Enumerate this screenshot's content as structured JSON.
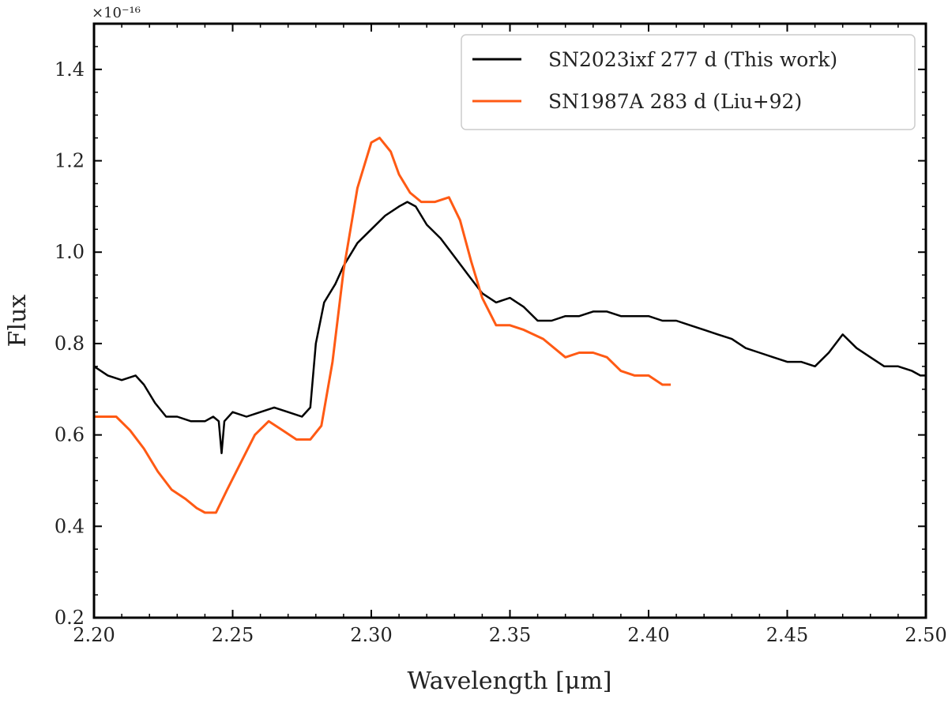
{
  "chart_data": {
    "type": "line",
    "title": "",
    "xlabel": "Wavelength [μm]",
    "ylabel": "Flux",
    "y_multiplier_label": "×10⁻¹⁶",
    "xlim": [
      2.2,
      2.5
    ],
    "ylim": [
      0.2,
      1.5
    ],
    "grid": false,
    "x_ticks": [
      2.2,
      2.25,
      2.3,
      2.35,
      2.4,
      2.45,
      2.5
    ],
    "x_tick_labels": [
      "2.20",
      "2.25",
      "2.30",
      "2.35",
      "2.40",
      "2.45",
      "2.50"
    ],
    "y_ticks": [
      0.2,
      0.4,
      0.6,
      0.8,
      1.0,
      1.2,
      1.4
    ],
    "y_tick_labels": [
      "0.2",
      "0.4",
      "0.6",
      "0.8",
      "1.0",
      "1.2",
      "1.4"
    ],
    "legend_position": "top-right",
    "series": [
      {
        "name": "SN2023ixf 277 d (This work)",
        "color": "#000000",
        "x": [
          2.2,
          2.205,
          2.21,
          2.215,
          2.218,
          2.222,
          2.226,
          2.23,
          2.235,
          2.24,
          2.243,
          2.245,
          2.246,
          2.247,
          2.25,
          2.255,
          2.26,
          2.265,
          2.27,
          2.275,
          2.278,
          2.28,
          2.283,
          2.287,
          2.29,
          2.295,
          2.3,
          2.305,
          2.31,
          2.313,
          2.316,
          2.32,
          2.325,
          2.33,
          2.335,
          2.34,
          2.345,
          2.35,
          2.355,
          2.36,
          2.365,
          2.37,
          2.375,
          2.38,
          2.385,
          2.39,
          2.395,
          2.4,
          2.405,
          2.41,
          2.415,
          2.42,
          2.425,
          2.43,
          2.435,
          2.44,
          2.445,
          2.45,
          2.455,
          2.46,
          2.465,
          2.47,
          2.475,
          2.48,
          2.485,
          2.49,
          2.495,
          2.498,
          2.5
        ],
        "y": [
          0.75,
          0.73,
          0.72,
          0.73,
          0.71,
          0.67,
          0.64,
          0.64,
          0.63,
          0.63,
          0.64,
          0.63,
          0.56,
          0.63,
          0.65,
          0.64,
          0.65,
          0.66,
          0.65,
          0.64,
          0.66,
          0.8,
          0.89,
          0.93,
          0.97,
          1.02,
          1.05,
          1.08,
          1.1,
          1.11,
          1.1,
          1.06,
          1.03,
          0.99,
          0.95,
          0.91,
          0.89,
          0.9,
          0.88,
          0.85,
          0.85,
          0.86,
          0.86,
          0.87,
          0.87,
          0.86,
          0.86,
          0.86,
          0.85,
          0.85,
          0.84,
          0.83,
          0.82,
          0.81,
          0.79,
          0.78,
          0.77,
          0.76,
          0.76,
          0.75,
          0.78,
          0.82,
          0.79,
          0.77,
          0.75,
          0.75,
          0.74,
          0.73,
          0.73
        ]
      },
      {
        "name": "SN1987A 283 d (Liu+92)",
        "color": "#ff5a14",
        "x": [
          2.2,
          2.208,
          2.213,
          2.218,
          2.223,
          2.228,
          2.233,
          2.237,
          2.24,
          2.244,
          2.248,
          2.253,
          2.258,
          2.263,
          2.268,
          2.273,
          2.278,
          2.282,
          2.286,
          2.29,
          2.295,
          2.3,
          2.303,
          2.307,
          2.31,
          2.314,
          2.318,
          2.323,
          2.328,
          2.332,
          2.336,
          2.34,
          2.345,
          2.35,
          2.355,
          2.362,
          2.37,
          2.375,
          2.38,
          2.385,
          2.39,
          2.395,
          2.4,
          2.405,
          2.408
        ],
        "y": [
          0.64,
          0.64,
          0.61,
          0.57,
          0.52,
          0.48,
          0.46,
          0.44,
          0.43,
          0.43,
          0.48,
          0.54,
          0.6,
          0.63,
          0.61,
          0.59,
          0.59,
          0.62,
          0.76,
          0.96,
          1.14,
          1.24,
          1.25,
          1.22,
          1.17,
          1.13,
          1.11,
          1.11,
          1.12,
          1.07,
          0.98,
          0.9,
          0.84,
          0.84,
          0.83,
          0.81,
          0.77,
          0.78,
          0.78,
          0.77,
          0.74,
          0.73,
          0.73,
          0.71,
          0.71
        ]
      }
    ]
  }
}
